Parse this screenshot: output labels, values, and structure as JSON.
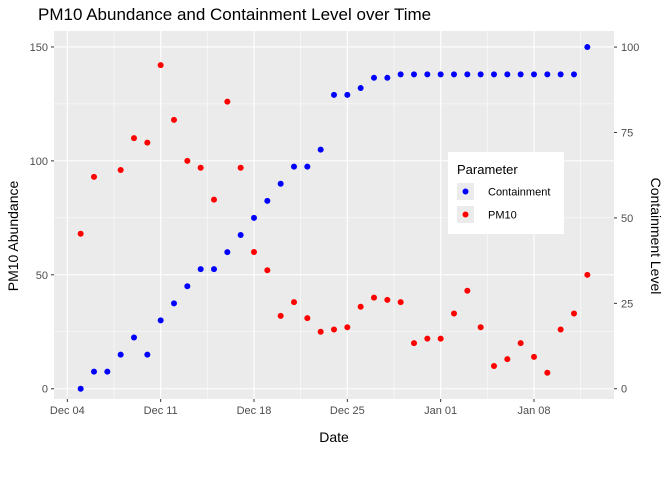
{
  "chart_data": {
    "type": "scatter",
    "title": "PM10 Abundance and Containment Level over Time",
    "xlabel": "Date",
    "ylabel": "PM10 Abundance",
    "ylabel_secondary": "Containment Level",
    "x_ticks": [
      "Dec 04",
      "Dec 11",
      "Dec 18",
      "Dec 25",
      "Jan 01",
      "Jan 08"
    ],
    "y_ticks": [
      "0",
      "50",
      "100",
      "150"
    ],
    "y2_ticks": [
      "0",
      "25",
      "50",
      "75",
      "100"
    ],
    "xlim": [
      "2019-12-03",
      "2020-01-14"
    ],
    "ylim": [
      -4.5,
      157
    ],
    "y2lim": [
      -3,
      104.7
    ],
    "grid": true,
    "legend": {
      "title": "Parameter",
      "position": "right-inside",
      "entries": [
        {
          "name": "Containment",
          "color": "#0000ff"
        },
        {
          "name": "PM10",
          "color": "#ff0000"
        }
      ]
    },
    "series": [
      {
        "name": "PM10",
        "axis": "left",
        "color": "#ff0000",
        "x": [
          "2019-12-05",
          "2019-12-06",
          "2019-12-08",
          "2019-12-09",
          "2019-12-10",
          "2019-12-11",
          "2019-12-12",
          "2019-12-13",
          "2019-12-14",
          "2019-12-15",
          "2019-12-16",
          "2019-12-17",
          "2019-12-18",
          "2019-12-19",
          "2019-12-20",
          "2019-12-21",
          "2019-12-22",
          "2019-12-23",
          "2019-12-24",
          "2019-12-25",
          "2019-12-26",
          "2019-12-27",
          "2019-12-28",
          "2019-12-29",
          "2019-12-30",
          "2019-12-31",
          "2020-01-01",
          "2020-01-02",
          "2020-01-03",
          "2020-01-04",
          "2020-01-05",
          "2020-01-06",
          "2020-01-07",
          "2020-01-08",
          "2020-01-09",
          "2020-01-10",
          "2020-01-11",
          "2020-01-12"
        ],
        "y": [
          68,
          93,
          96,
          110,
          108,
          142,
          118,
          100,
          97,
          83,
          126,
          97,
          60,
          52,
          32,
          38,
          31,
          25,
          26,
          27,
          36,
          40,
          39,
          38,
          20,
          22,
          22,
          33,
          43,
          27,
          10,
          13,
          20,
          14,
          7,
          26,
          33,
          50
        ]
      },
      {
        "name": "Containment",
        "axis": "right",
        "color": "#0000ff",
        "x": [
          "2019-12-05",
          "2019-12-06",
          "2019-12-07",
          "2019-12-08",
          "2019-12-09",
          "2019-12-10",
          "2019-12-11",
          "2019-12-12",
          "2019-12-13",
          "2019-12-14",
          "2019-12-15",
          "2019-12-16",
          "2019-12-17",
          "2019-12-18",
          "2019-12-19",
          "2019-12-20",
          "2019-12-21",
          "2019-12-22",
          "2019-12-23",
          "2019-12-24",
          "2019-12-25",
          "2019-12-26",
          "2019-12-27",
          "2019-12-28",
          "2019-12-29",
          "2019-12-30",
          "2019-12-31",
          "2020-01-01",
          "2020-01-02",
          "2020-01-03",
          "2020-01-04",
          "2020-01-05",
          "2020-01-06",
          "2020-01-07",
          "2020-01-08",
          "2020-01-09",
          "2020-01-10",
          "2020-01-11",
          "2020-01-12"
        ],
        "y": [
          0,
          5,
          5,
          10,
          15,
          10,
          20,
          25,
          30,
          35,
          35,
          40,
          45,
          50,
          55,
          60,
          65,
          65,
          70,
          86,
          86,
          88,
          91,
          91,
          92,
          92,
          92,
          92,
          92,
          92,
          92,
          92,
          92,
          92,
          92,
          92,
          92,
          92,
          100
        ]
      }
    ]
  }
}
